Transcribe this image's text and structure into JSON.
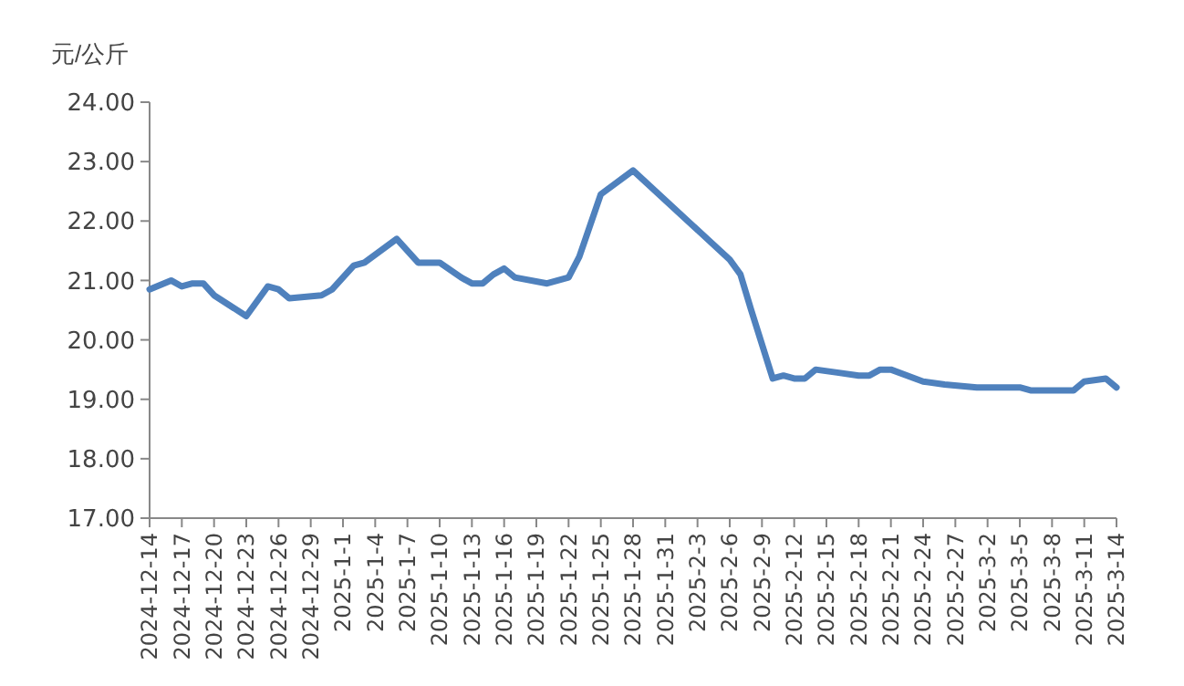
{
  "chart_data": {
    "type": "line",
    "ylabel": "元/公斤",
    "x": [
      "2024-12-14",
      "2024-12-16",
      "2024-12-17",
      "2024-12-18",
      "2024-12-19",
      "2024-12-20",
      "2024-12-23",
      "2024-12-25",
      "2024-12-26",
      "2024-12-27",
      "2024-12-30",
      "2024-12-31",
      "2025-01-02",
      "2025-01-03",
      "2025-01-06",
      "2025-01-08",
      "2025-01-10",
      "2025-01-12",
      "2025-01-13",
      "2025-01-14",
      "2025-01-15",
      "2025-01-16",
      "2025-01-17",
      "2025-01-20",
      "2025-01-22",
      "2025-01-23",
      "2025-01-25",
      "2025-01-28",
      "2025-02-06",
      "2025-02-07",
      "2025-02-08",
      "2025-02-10",
      "2025-02-11",
      "2025-02-12",
      "2025-02-13",
      "2025-02-14",
      "2025-02-16",
      "2025-02-18",
      "2025-02-19",
      "2025-02-20",
      "2025-02-21",
      "2025-02-24",
      "2025-02-26",
      "2025-03-01",
      "2025-03-03",
      "2025-03-04",
      "2025-03-05",
      "2025-03-06",
      "2025-03-10",
      "2025-03-11",
      "2025-03-13",
      "2025-03-14"
    ],
    "series": [
      {
        "color": "#4f81bd",
        "values": [
          20.85,
          21.0,
          20.9,
          20.95,
          20.95,
          20.75,
          20.4,
          20.9,
          20.85,
          20.7,
          20.75,
          20.85,
          21.25,
          21.3,
          21.7,
          21.3,
          21.3,
          21.05,
          20.95,
          20.95,
          21.1,
          21.2,
          21.05,
          20.95,
          21.05,
          21.4,
          22.45,
          22.85,
          21.35,
          21.1,
          20.5,
          19.35,
          19.4,
          19.35,
          19.35,
          19.5,
          19.45,
          19.4,
          19.4,
          19.5,
          19.5,
          19.3,
          19.25,
          19.2,
          19.2,
          19.2,
          19.2,
          19.15,
          19.15,
          19.3,
          19.35,
          19.2
        ]
      }
    ],
    "xlim": [
      "2024-12-14",
      "2025-03-14"
    ],
    "xticks": [
      {
        "value": "2024-12-14",
        "label": "2024-12-14"
      },
      {
        "value": "2024-12-17",
        "label": "2024-12-17"
      },
      {
        "value": "2024-12-20",
        "label": "2024-12-20"
      },
      {
        "value": "2024-12-23",
        "label": "2024-12-23"
      },
      {
        "value": "2024-12-26",
        "label": "2024-12-26"
      },
      {
        "value": "2024-12-29",
        "label": "2024-12-29"
      },
      {
        "value": "2025-01-01",
        "label": "2025-1-1"
      },
      {
        "value": "2025-01-04",
        "label": "2025-1-4"
      },
      {
        "value": "2025-01-07",
        "label": "2025-1-7"
      },
      {
        "value": "2025-01-10",
        "label": "2025-1-10"
      },
      {
        "value": "2025-01-13",
        "label": "2025-1-13"
      },
      {
        "value": "2025-01-16",
        "label": "2025-1-16"
      },
      {
        "value": "2025-01-19",
        "label": "2025-1-19"
      },
      {
        "value": "2025-01-22",
        "label": "2025-1-22"
      },
      {
        "value": "2025-01-25",
        "label": "2025-1-25"
      },
      {
        "value": "2025-01-28",
        "label": "2025-1-28"
      },
      {
        "value": "2025-01-31",
        "label": "2025-1-31"
      },
      {
        "value": "2025-02-03",
        "label": "2025-2-3"
      },
      {
        "value": "2025-02-06",
        "label": "2025-2-6"
      },
      {
        "value": "2025-02-09",
        "label": "2025-2-9"
      },
      {
        "value": "2025-02-12",
        "label": "2025-2-12"
      },
      {
        "value": "2025-02-15",
        "label": "2025-2-15"
      },
      {
        "value": "2025-02-18",
        "label": "2025-2-18"
      },
      {
        "value": "2025-02-21",
        "label": "2025-2-21"
      },
      {
        "value": "2025-02-24",
        "label": "2025-2-24"
      },
      {
        "value": "2025-02-27",
        "label": "2025-2-27"
      },
      {
        "value": "2025-03-02",
        "label": "2025-3-2"
      },
      {
        "value": "2025-03-05",
        "label": "2025-3-5"
      },
      {
        "value": "2025-03-08",
        "label": "2025-3-8"
      },
      {
        "value": "2025-03-11",
        "label": "2025-3-11"
      },
      {
        "value": "2025-03-14",
        "label": "2025-3-14"
      }
    ],
    "ylim": [
      17,
      24
    ],
    "yticks": [
      {
        "value": 17,
        "label": "17.00"
      },
      {
        "value": 18,
        "label": "18.00"
      },
      {
        "value": 19,
        "label": "19.00"
      },
      {
        "value": 20,
        "label": "20.00"
      },
      {
        "value": 21,
        "label": "21.00"
      },
      {
        "value": 22,
        "label": "22.00"
      },
      {
        "value": 23,
        "label": "23.00"
      },
      {
        "value": 24,
        "label": "24.00"
      }
    ],
    "grid": false,
    "line_style": "solid",
    "marker": "none"
  }
}
